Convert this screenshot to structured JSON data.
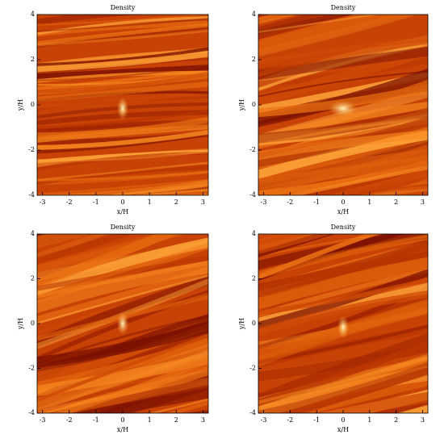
{
  "chart_data": [
    {
      "type": "heatmap",
      "title": "Density",
      "xlabel": "x/H",
      "ylabel": "y/H",
      "xlim": [
        -3.2,
        3.2
      ],
      "ylim": [
        -4,
        4
      ],
      "xticks": [
        -3,
        -2,
        -1,
        0,
        1,
        2,
        3
      ],
      "yticks": [
        -4,
        -2,
        0,
        2,
        4
      ]
    },
    {
      "type": "heatmap",
      "title": "Density",
      "xlabel": "x/H",
      "ylabel": "y/H",
      "xlim": [
        -3.2,
        3.2
      ],
      "ylim": [
        -4,
        4
      ],
      "xticks": [
        -3,
        -2,
        -1,
        0,
        1,
        2,
        3
      ],
      "yticks": [
        -4,
        -2,
        0,
        2,
        4
      ]
    },
    {
      "type": "heatmap",
      "title": "Density",
      "xlabel": "x/H",
      "ylabel": "y/H",
      "xlim": [
        -3.2,
        3.2
      ],
      "ylim": [
        -4,
        4
      ],
      "xticks": [
        -3,
        -2,
        -1,
        0,
        1,
        2,
        3
      ],
      "yticks": [
        -4,
        -2,
        0,
        2,
        4
      ]
    },
    {
      "type": "heatmap",
      "title": "Density",
      "xlabel": "x/H",
      "ylabel": "y/H",
      "xlim": [
        -3.2,
        3.2
      ],
      "ylim": [
        -4,
        4
      ],
      "xticks": [
        -3,
        -2,
        -1,
        0,
        1,
        2,
        3
      ],
      "yticks": [
        -4,
        -2,
        0,
        2,
        4
      ]
    }
  ]
}
